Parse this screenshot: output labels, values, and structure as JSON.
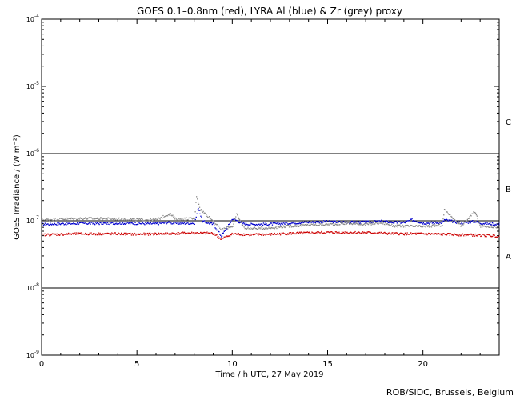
{
  "chart_data": {
    "type": "scatter",
    "title": "GOES 0.1–0.8nm (red), LYRA Al (blue) & Zr (grey) proxy",
    "xlabel": "Time / h UTC, 27 May 2019",
    "ylabel": "GOES Irradiance / (W m⁻²)",
    "xlim": [
      0,
      24
    ],
    "ylim": [
      1e-09,
      0.0001
    ],
    "y_scale": "log",
    "x_ticks": [
      0,
      5,
      10,
      15,
      20
    ],
    "y_tick_exponents": [
      -9,
      -8,
      -7,
      -6,
      -5,
      -4
    ],
    "flare_classes": [
      {
        "label": "A",
        "level": 3e-08
      },
      {
        "label": "B",
        "level": 3e-07
      },
      {
        "label": "C",
        "level": 3e-06
      }
    ],
    "reference_lines": [
      1e-08,
      1e-07,
      1e-06
    ],
    "series": [
      {
        "color": "#0000cc",
        "points": [
          [
            0,
            9e-08
          ],
          [
            1,
            9.2e-08
          ],
          [
            2,
            9.3e-08
          ],
          [
            3,
            9.3e-08
          ],
          [
            4,
            9.4e-08
          ],
          [
            5,
            9.3e-08
          ],
          [
            6,
            9.2e-08
          ],
          [
            6.6,
            9.6e-08
          ],
          [
            7,
            9.3e-08
          ],
          [
            8,
            9.4e-08
          ],
          [
            8.2,
            1.6e-07
          ],
          [
            8.4,
            1e-07
          ],
          [
            9,
            9e-08
          ],
          [
            9.4,
            6e-08
          ],
          [
            9.7,
            8e-08
          ],
          [
            10,
            1.1e-07
          ],
          [
            10.5,
            9.3e-08
          ],
          [
            11,
            9e-08
          ],
          [
            12,
            9.1e-08
          ],
          [
            13,
            9.4e-08
          ],
          [
            14,
            9.7e-08
          ],
          [
            15,
            9.9e-08
          ],
          [
            16,
            9.7e-08
          ],
          [
            17,
            9.7e-08
          ],
          [
            17.8,
            1e-07
          ],
          [
            18.5,
            9.6e-08
          ],
          [
            19,
            9.6e-08
          ],
          [
            19.4,
            1.05e-07
          ],
          [
            20,
            9.4e-08
          ],
          [
            21,
            9.6e-08
          ],
          [
            21.1,
            1.05e-07
          ],
          [
            22,
            9.4e-08
          ],
          [
            22.7,
            1e-07
          ],
          [
            23,
            9.4e-08
          ],
          [
            24,
            9e-08
          ]
        ]
      },
      {
        "color": "#888888",
        "points": [
          [
            0,
            1.05e-07
          ],
          [
            1,
            1.08e-07
          ],
          [
            2,
            1.1e-07
          ],
          [
            3,
            1.1e-07
          ],
          [
            4,
            1.08e-07
          ],
          [
            5,
            1.06e-07
          ],
          [
            6,
            1.05e-07
          ],
          [
            6.7,
            1.3e-07
          ],
          [
            7,
            1.08e-07
          ],
          [
            8,
            1.1e-07
          ],
          [
            8.1,
            2.4e-07
          ],
          [
            8.3,
            1.5e-07
          ],
          [
            9,
            1e-07
          ],
          [
            9.4,
            7.5e-08
          ],
          [
            10,
            8.5e-08
          ],
          [
            10.2,
            1.25e-07
          ],
          [
            10.6,
            8e-08
          ],
          [
            11,
            7.8e-08
          ],
          [
            12,
            8e-08
          ],
          [
            13,
            8.5e-08
          ],
          [
            14,
            8.8e-08
          ],
          [
            15,
            9e-08
          ],
          [
            16,
            9.3e-08
          ],
          [
            17,
            9e-08
          ],
          [
            17.8,
            9.5e-08
          ],
          [
            18.5,
            8.5e-08
          ],
          [
            19,
            8.5e-08
          ],
          [
            20,
            8.3e-08
          ],
          [
            21,
            8.8e-08
          ],
          [
            21.1,
            1.5e-07
          ],
          [
            22,
            8.5e-08
          ],
          [
            22.7,
            1.4e-07
          ],
          [
            23,
            8.5e-08
          ],
          [
            24,
            8.2e-08
          ]
        ]
      },
      {
        "color": "#cc0000",
        "points": [
          [
            0,
            6.3e-08
          ],
          [
            1,
            6.4e-08
          ],
          [
            2,
            6.5e-08
          ],
          [
            3,
            6.5e-08
          ],
          [
            4,
            6.5e-08
          ],
          [
            5,
            6.4e-08
          ],
          [
            6,
            6.5e-08
          ],
          [
            7,
            6.6e-08
          ],
          [
            8,
            6.7e-08
          ],
          [
            9,
            6.6e-08
          ],
          [
            9.4,
            5.4e-08
          ],
          [
            10,
            6.5e-08
          ],
          [
            11,
            6.3e-08
          ],
          [
            12,
            6.4e-08
          ],
          [
            13,
            6.6e-08
          ],
          [
            14,
            6.7e-08
          ],
          [
            15,
            6.8e-08
          ],
          [
            16,
            6.8e-08
          ],
          [
            17,
            6.8e-08
          ],
          [
            18,
            6.6e-08
          ],
          [
            19,
            6.5e-08
          ],
          [
            20,
            6.5e-08
          ],
          [
            21,
            6.4e-08
          ],
          [
            22,
            6.3e-08
          ],
          [
            23,
            6.2e-08
          ],
          [
            24,
            6e-08
          ]
        ]
      }
    ]
  },
  "credit": "ROB/SIDC, Brussels, Belgium"
}
